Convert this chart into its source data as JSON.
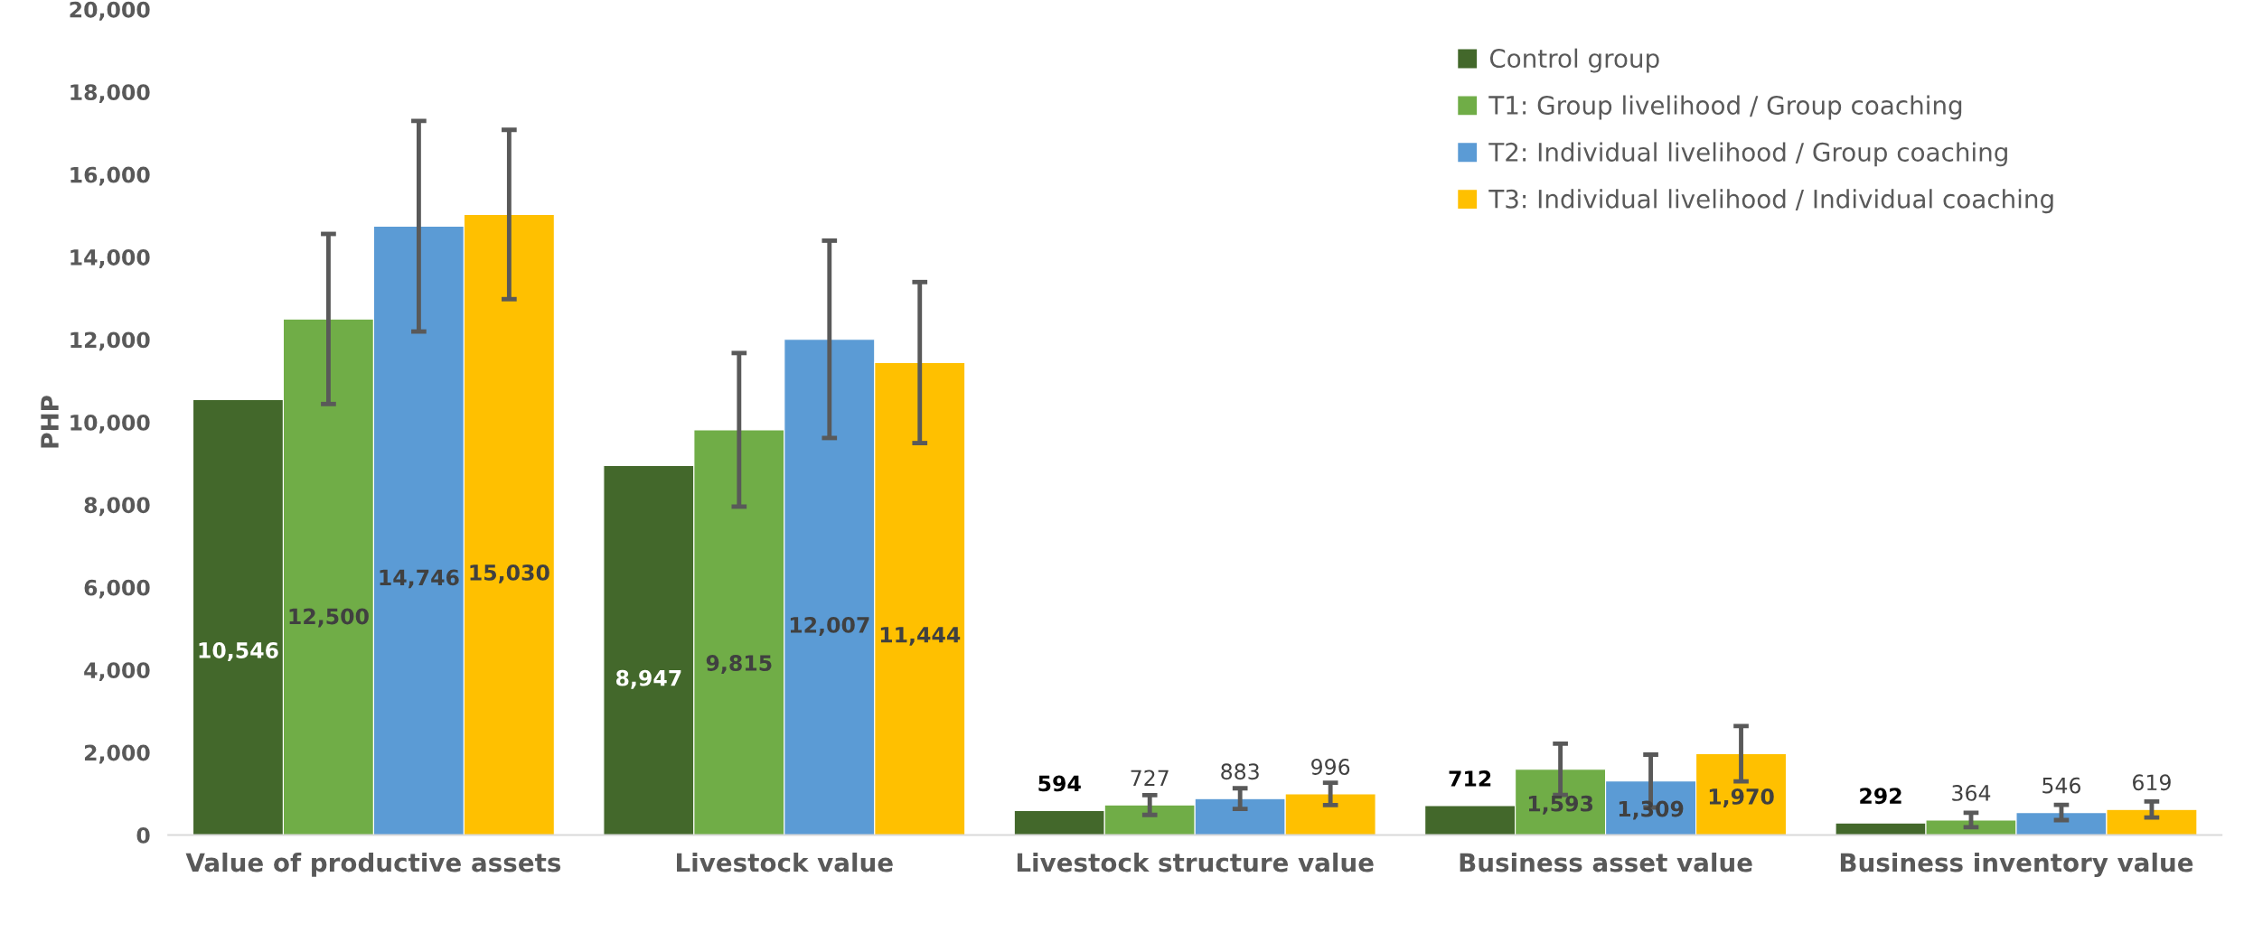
{
  "chart_data": {
    "type": "bar",
    "ylabel": "PHP",
    "categories": [
      "Value of productive assets",
      "Livestock value",
      "Livestock structure value",
      "Business asset value",
      "Business inventory value"
    ],
    "series": [
      {
        "name": "Control group",
        "color": "#43682b",
        "values": [
          10546,
          8947,
          594,
          712,
          292
        ],
        "value_labels": [
          "10,546",
          "8,947",
          "594",
          "712",
          "292"
        ]
      },
      {
        "name": "T1: Group livelihood / Group coaching",
        "color": "#70ad47",
        "values": [
          12500,
          9815,
          727,
          1593,
          364
        ],
        "value_labels": [
          "12,500",
          "9,815",
          "727",
          "1,593",
          "364"
        ],
        "errors": [
          2060,
          1860,
          240,
          620,
          175
        ]
      },
      {
        "name": "T2: Individual livelihood / Group coaching",
        "color": "#5b9bd5",
        "values": [
          14746,
          12007,
          883,
          1309,
          546
        ],
        "value_labels": [
          "14,746",
          "12,007",
          "883",
          "1,309",
          "546"
        ],
        "errors": [
          2550,
          2390,
          250,
          640,
          185
        ]
      },
      {
        "name": "T3: Individual livelihood / Individual coaching",
        "color": "#ffc000",
        "values": [
          15030,
          11444,
          996,
          1970,
          619
        ],
        "value_labels": [
          "15,030",
          "11,444",
          "996",
          "1,970",
          "619"
        ],
        "errors": [
          2050,
          1950,
          270,
          670,
          195
        ]
      }
    ],
    "ylim": [
      0,
      20000
    ],
    "yticks": [
      {
        "value": 0,
        "label": "0"
      },
      {
        "value": 2000,
        "label": "2,000"
      },
      {
        "value": 4000,
        "label": "4,000"
      },
      {
        "value": 6000,
        "label": "6,000"
      },
      {
        "value": 8000,
        "label": "8,000"
      },
      {
        "value": 10000,
        "label": "10,000"
      },
      {
        "value": 12000,
        "label": "12,000"
      },
      {
        "value": 14000,
        "label": "14,000"
      },
      {
        "value": 16000,
        "label": "16,000"
      },
      {
        "value": 18000,
        "label": "18,000"
      },
      {
        "value": 20000,
        "label": "20,000"
      }
    ],
    "legend": "top right",
    "grid": false
  }
}
